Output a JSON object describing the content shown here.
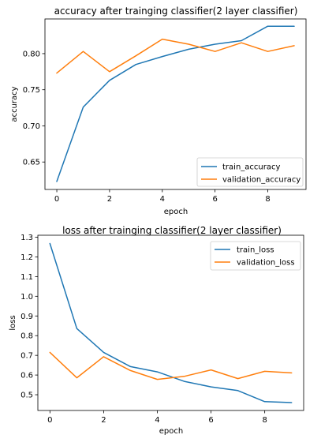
{
  "chart_data": [
    {
      "type": "line",
      "title": "accuracy after trainging classifier(2 layer classifier)",
      "xlabel": "epoch",
      "ylabel": "accuracy",
      "x": [
        0,
        1,
        2,
        3,
        4,
        5,
        6,
        7,
        8,
        9
      ],
      "xlim": [
        -0.45,
        9.45
      ],
      "ylim": [
        0.612,
        0.848
      ],
      "xticks": [
        0,
        2,
        4,
        6,
        8
      ],
      "yticks": [
        0.65,
        0.7,
        0.75,
        0.8
      ],
      "xtick_labels": [
        "0",
        "2",
        "4",
        "6",
        "8"
      ],
      "ytick_labels": [
        "0.65",
        "0.70",
        "0.75",
        "0.80"
      ],
      "legend_position": "lower-right",
      "grid": false,
      "series": [
        {
          "name": "train_accuracy",
          "color": "#1f77b4",
          "values": [
            0.623,
            0.726,
            0.763,
            0.785,
            0.796,
            0.806,
            0.813,
            0.818,
            0.838,
            0.838
          ]
        },
        {
          "name": "validation_accuracy",
          "color": "#ff7f0e",
          "values": [
            0.773,
            0.803,
            0.775,
            0.797,
            0.82,
            0.813,
            0.803,
            0.815,
            0.803,
            0.811
          ]
        }
      ]
    },
    {
      "type": "line",
      "title": "loss after trainging classifier(2 layer classifier)",
      "xlabel": "epoch",
      "ylabel": "loss",
      "x": [
        0,
        1,
        2,
        3,
        4,
        5,
        6,
        7,
        8,
        9
      ],
      "xlim": [
        -0.45,
        9.45
      ],
      "ylim": [
        0.42,
        1.31
      ],
      "xticks": [
        0,
        2,
        4,
        6,
        8
      ],
      "yticks": [
        0.5,
        0.6,
        0.7,
        0.8,
        0.9,
        1.0,
        1.1,
        1.2,
        1.3
      ],
      "xtick_labels": [
        "0",
        "2",
        "4",
        "6",
        "8"
      ],
      "ytick_labels": [
        "0.5",
        "0.6",
        "0.7",
        "0.8",
        "0.9",
        "1.0",
        "1.1",
        "1.2",
        "1.3"
      ],
      "legend_position": "upper-right",
      "grid": false,
      "series": [
        {
          "name": "train_loss",
          "color": "#1f77b4",
          "values": [
            1.268,
            0.836,
            0.715,
            0.643,
            0.616,
            0.568,
            0.54,
            0.521,
            0.465,
            0.46
          ]
        },
        {
          "name": "validation_loss",
          "color": "#ff7f0e",
          "values": [
            0.715,
            0.586,
            0.693,
            0.623,
            0.578,
            0.593,
            0.626,
            0.582,
            0.619,
            0.611
          ]
        }
      ]
    }
  ]
}
